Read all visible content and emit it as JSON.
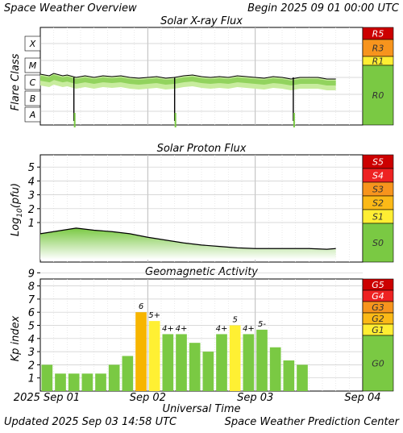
{
  "header": {
    "title": "Space Weather Overview",
    "begin": "Begin 2025 09 01 00:00 UTC"
  },
  "footer": {
    "updated": "Updated 2025 Sep 03 14:58 UTC",
    "center": "Space Weather Prediction Center",
    "xaxis_title": "Universal Time",
    "date_ticks": [
      "2025 Sep 01",
      "Sep 02",
      "Sep 03",
      "Sep 04"
    ]
  },
  "colors": {
    "flux_green": "#7ac943",
    "flux_green_light": "#c8ec9e",
    "trace_black": "#000000",
    "grid": "#cccccc",
    "kp_green": "#7ac943",
    "kp_yellow": "#fff033",
    "kp_orange": "#f7b500"
  },
  "chart_data": [
    {
      "type": "line",
      "title": "Solar X-ray Flux",
      "ylabel": "Flare Class",
      "xlabel": "Universal Time",
      "xlim": [
        "2025-09-01 00:00",
        "2025-09-04 00:00"
      ],
      "yscale": "log",
      "ylim": [
        "1e-9 W/m2",
        "1e-3 W/m2"
      ],
      "class_ticks": [
        "A",
        "B",
        "C",
        "M",
        "X"
      ],
      "scale_bar": [
        {
          "label": "R5",
          "color": "#cc0000"
        },
        {
          "label": "R3",
          "color": "#f7941d"
        },
        {
          "label": "R1",
          "color": "#ffee33"
        },
        {
          "label": "R0",
          "color": "#7ac943"
        }
      ],
      "grid": true,
      "series": [
        {
          "x_hours": [
            0,
            2,
            3,
            5,
            6,
            8,
            10,
            12,
            14,
            16,
            18,
            20,
            22,
            24,
            26,
            28,
            30,
            32,
            34,
            36,
            38,
            40,
            42,
            44,
            46,
            48,
            50,
            52,
            54,
            56,
            58,
            60,
            62,
            64,
            66
          ],
          "class_level": [
            3.5,
            3.4,
            3.55,
            3.4,
            3.45,
            3.3,
            3.4,
            3.3,
            3.4,
            3.35,
            3.4,
            3.3,
            3.25,
            3.3,
            3.35,
            3.25,
            3.3,
            3.4,
            3.45,
            3.35,
            3.3,
            3.35,
            3.3,
            3.4,
            3.35,
            3.3,
            3.25,
            3.35,
            3.3,
            3.2,
            3.3,
            3.3,
            3.3,
            3.2,
            3.2
          ]
        }
      ],
      "dropouts_hours": [
        7.5,
        30,
        56.5
      ]
    },
    {
      "type": "line",
      "title": "Solar Proton Flux",
      "ylabel": "Log10(pfu)",
      "xlabel": "Universal Time",
      "xlim": [
        "2025-09-01 00:00",
        "2025-09-04 00:00"
      ],
      "ylim": [
        -2,
        6
      ],
      "y_ticks": [
        1,
        2,
        3,
        4,
        5
      ],
      "scale_bar": [
        {
          "label": "S5",
          "color": "#cc0000"
        },
        {
          "label": "S4",
          "color": "#ee2222"
        },
        {
          "label": "S3",
          "color": "#f7941d"
        },
        {
          "label": "S2",
          "color": "#fbb917"
        },
        {
          "label": "S1",
          "color": "#ffee33"
        },
        {
          "label": "S0",
          "color": "#7ac943"
        }
      ],
      "grid": true,
      "series": [
        {
          "x_hours": [
            0,
            4,
            8,
            12,
            16,
            20,
            24,
            28,
            32,
            36,
            40,
            44,
            48,
            52,
            56,
            60,
            64,
            66
          ],
          "log_pfu": [
            -0.05,
            0.15,
            0.35,
            0.2,
            0.1,
            -0.05,
            -0.3,
            -0.5,
            -0.7,
            -0.85,
            -0.95,
            -1.05,
            -1.1,
            -1.1,
            -1.1,
            -1.1,
            -1.15,
            -1.1
          ]
        }
      ]
    },
    {
      "type": "bar",
      "title": "Geomagnetic Activity",
      "ylabel": "Kp index",
      "xlabel": "Universal Time",
      "xlim": [
        "2025-09-01 00:00",
        "2025-09-04 00:00"
      ],
      "ylim": [
        0,
        10
      ],
      "y_ticks": [
        1,
        2,
        3,
        4,
        5,
        6,
        7,
        8,
        9
      ],
      "scale_bar": [
        {
          "label": "G5",
          "color": "#cc0000"
        },
        {
          "label": "G4",
          "color": "#ee2222"
        },
        {
          "label": "G3",
          "color": "#f7941d"
        },
        {
          "label": "G2",
          "color": "#fbb917"
        },
        {
          "label": "G1",
          "color": "#ffee33"
        },
        {
          "label": "G0",
          "color": "#7ac943"
        }
      ],
      "grid": true,
      "bar_hours": 3,
      "values": [
        2,
        1.33,
        1.33,
        1.33,
        1.33,
        2,
        2.67,
        6,
        5.33,
        4.33,
        4.33,
        3.67,
        3,
        4.33,
        5,
        4.33,
        4.67,
        3.33,
        2.33,
        2
      ],
      "value_labels": [
        "",
        "",
        "",
        "",
        "",
        "",
        "",
        "6",
        "5+",
        "4+",
        "4+",
        "",
        "",
        "4+",
        "5",
        "4+",
        "5-",
        "",
        "",
        ""
      ]
    }
  ]
}
